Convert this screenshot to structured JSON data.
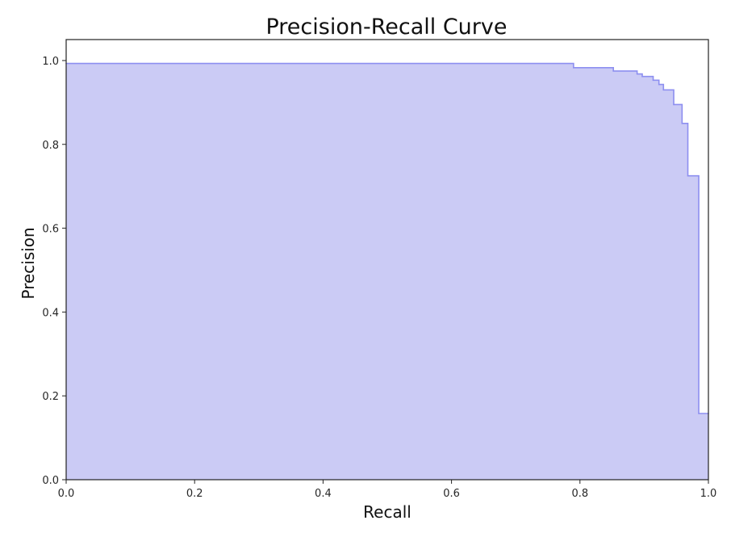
{
  "chart_data": {
    "type": "area",
    "title": "Precision-Recall Curve",
    "xlabel": "Recall",
    "ylabel": "Precision",
    "xlim": [
      0,
      1
    ],
    "ylim": [
      0,
      1.05
    ],
    "xticks": [
      0.0,
      0.2,
      0.4,
      0.6,
      0.8,
      1.0
    ],
    "yticks": [
      0.0,
      0.2,
      0.4,
      0.6,
      0.8,
      1.0
    ],
    "xtick_labels": [
      "0.0",
      "0.2",
      "0.4",
      "0.6",
      "0.8",
      "1.0"
    ],
    "ytick_labels": [
      "0.0",
      "0.2",
      "0.4",
      "0.6",
      "0.8",
      "1.0"
    ],
    "grid": false,
    "step": "post",
    "series": [
      {
        "x": [
          0.0,
          0.79,
          0.852,
          0.889,
          0.897,
          0.914,
          0.923,
          0.93,
          0.946,
          0.959,
          0.968,
          0.985,
          1.0
        ],
        "y": [
          0.993,
          0.983,
          0.975,
          0.968,
          0.962,
          0.953,
          0.943,
          0.93,
          0.895,
          0.85,
          0.725,
          0.158,
          0.158
        ],
        "line_color": "#8d8ff0",
        "fill_color": "#cbcbf5"
      }
    ]
  }
}
